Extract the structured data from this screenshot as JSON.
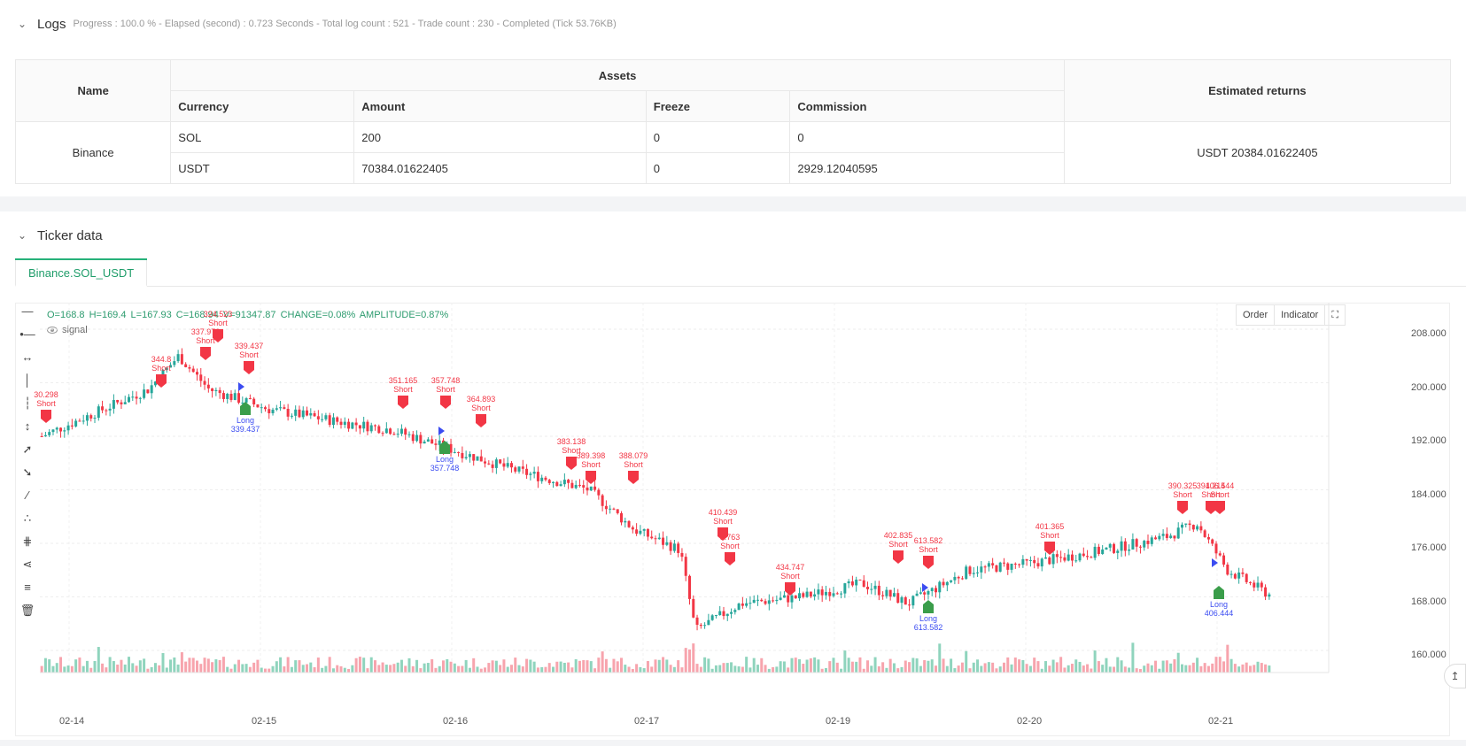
{
  "logs": {
    "title": "Logs",
    "summary": "Progress : 100.0 % - Elapsed (second) : 0.723 Seconds - Total log count : 521 - Trade count : 230 - Completed (Tick 53.76KB)"
  },
  "assets_table": {
    "name_header": "Name",
    "assets_header": "Assets",
    "returns_header": "Estimated returns",
    "columns": [
      "Currency",
      "Amount",
      "Freeze",
      "Commission"
    ],
    "exchange": "Binance",
    "rows": [
      [
        "SOL",
        "200",
        "0",
        "0"
      ],
      [
        "USDT",
        "70384.01622405",
        "0",
        "2929.12040595"
      ]
    ],
    "estimated_returns": "USDT 20384.01622405"
  },
  "ticker": {
    "title": "Ticker data",
    "tab_label": "Binance.SOL_USDT",
    "ohlc": {
      "o": "O=168.8",
      "h": "H=169.4",
      "l": "L=167.93",
      "c": "C=168.94",
      "v": "V=91347.87",
      "change": "CHANGE=0.08%",
      "amplitude": "AMPLITUDE=0.87%"
    },
    "signal_label": "signal",
    "buttons": {
      "order": "Order",
      "indicator": "Indicator"
    },
    "price_ticks": [
      "208.000",
      "200.000",
      "192.000",
      "184.000",
      "176.000",
      "168.000",
      "160.000"
    ],
    "date_ticks": [
      "02-14",
      "02-15",
      "02-16",
      "02-17",
      "02-19",
      "02-20",
      "02-21"
    ]
  },
  "chart_data": {
    "type": "candlestick",
    "price_range": [
      158,
      210
    ],
    "short_markers": [
      {
        "price": "30.298",
        "label": "Short"
      },
      {
        "price": "344.8",
        "label": "Short"
      },
      {
        "price": "337.973",
        "label": "Short"
      },
      {
        "price": "324.523",
        "label": "Short"
      },
      {
        "price": "339.437",
        "label": "Short"
      },
      {
        "price": "351.165",
        "label": "Short"
      },
      {
        "price": "357.748",
        "label": "Short"
      },
      {
        "price": "364.893",
        "label": "Short"
      },
      {
        "price": "383.138",
        "label": "Short"
      },
      {
        "price": "389.398",
        "label": "Short"
      },
      {
        "price": "388.079",
        "label": "Short"
      },
      {
        "price": "410.439",
        "label": "Short"
      },
      {
        "price": "3.763",
        "label": "Short"
      },
      {
        "price": "434.747",
        "label": "Short"
      },
      {
        "price": "402.835",
        "label": "Short"
      },
      {
        "price": "613.582",
        "label": "Short"
      },
      {
        "price": "401.365",
        "label": "Short"
      },
      {
        "price": "390.325",
        "label": "Short"
      },
      {
        "price": "391.215",
        "label": "Short"
      },
      {
        "price": "406.444",
        "label": "Short"
      }
    ],
    "long_markers": [
      {
        "price": "339.437",
        "label": "Long"
      },
      {
        "price": "357.748",
        "label": "Long"
      },
      {
        "price": "613.582",
        "label": "Long"
      },
      {
        "price": "406.444",
        "label": "Long"
      }
    ],
    "colors": {
      "up": "#26a69a",
      "down": "#f23645",
      "long": "#3a9d4a",
      "short": "#f23645",
      "entry": "#3b4cf1"
    }
  }
}
